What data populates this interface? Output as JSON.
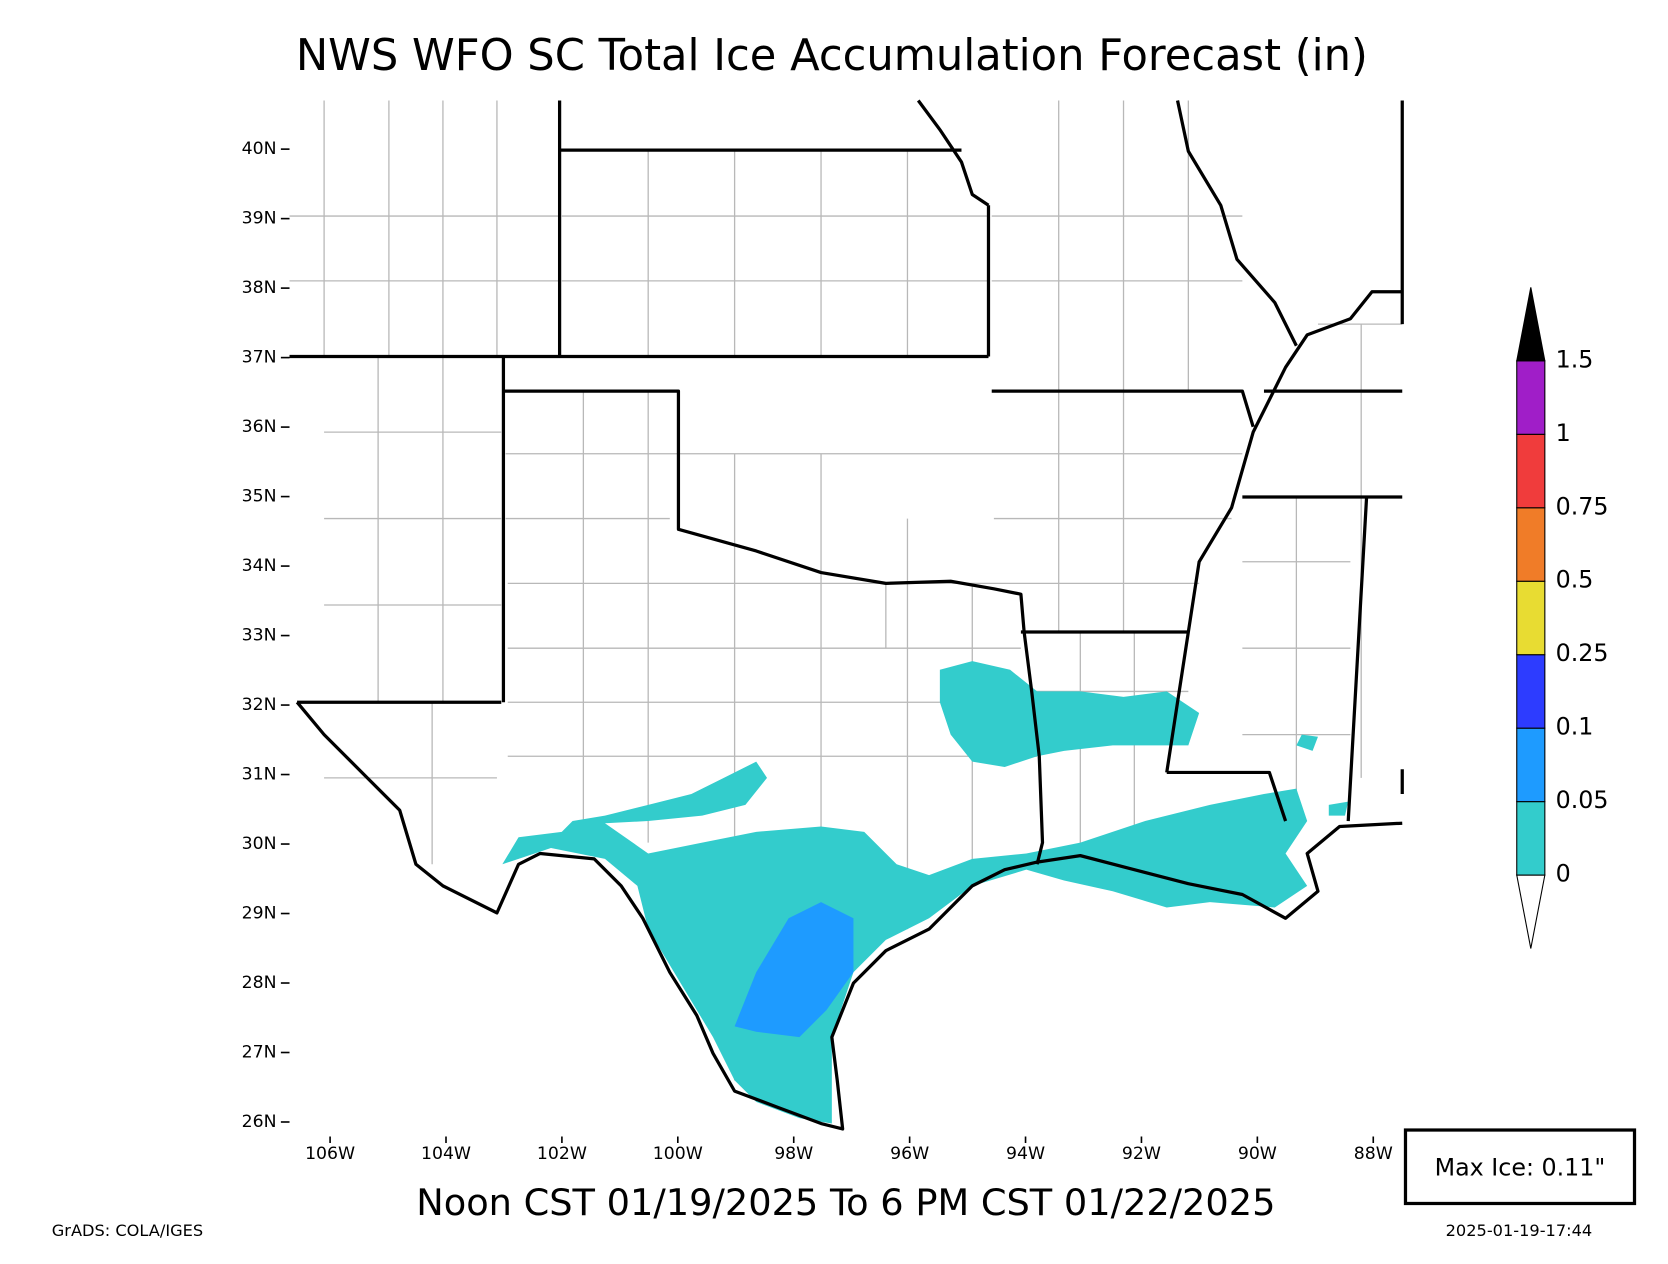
{
  "chart_data": {
    "type": "map",
    "title": "NWS WFO SC Total Ice Accumulation Forecast (in)",
    "subtitle": "Noon CST 01/19/2025 To 6 PM CST 01/22/2025",
    "xlim": [
      -106.7,
      -87.5
    ],
    "ylim": [
      25.9,
      40.7
    ],
    "xticks": [
      {
        "value": -106,
        "label": "106W"
      },
      {
        "value": -104,
        "label": "104W"
      },
      {
        "value": -102,
        "label": "102W"
      },
      {
        "value": -100,
        "label": "100W"
      },
      {
        "value": -98,
        "label": "98W"
      },
      {
        "value": -96,
        "label": "96W"
      },
      {
        "value": -94,
        "label": "94W"
      },
      {
        "value": -92,
        "label": "92W"
      },
      {
        "value": -90,
        "label": "90W"
      },
      {
        "value": -88,
        "label": "88W"
      }
    ],
    "yticks": [
      {
        "value": 26,
        "label": "26N"
      },
      {
        "value": 27,
        "label": "27N"
      },
      {
        "value": 28,
        "label": "28N"
      },
      {
        "value": 29,
        "label": "29N"
      },
      {
        "value": 30,
        "label": "30N"
      },
      {
        "value": 31,
        "label": "31N"
      },
      {
        "value": 32,
        "label": "32N"
      },
      {
        "value": 33,
        "label": "33N"
      },
      {
        "value": 34,
        "label": "34N"
      },
      {
        "value": 35,
        "label": "35N"
      },
      {
        "value": 36,
        "label": "36N"
      },
      {
        "value": 37,
        "label": "37N"
      },
      {
        "value": 38,
        "label": "38N"
      },
      {
        "value": 39,
        "label": "39N"
      },
      {
        "value": 40,
        "label": "40N"
      }
    ],
    "levels": [
      0,
      0.05,
      0.1,
      0.25,
      0.5,
      0.75,
      1,
      1.5
    ],
    "colors": [
      "#ffffff",
      "#33cccc",
      "#1e9bff",
      "#2d3cff",
      "#e8dc32",
      "#f07c28",
      "#f03c3c",
      "#a01ec8",
      "#000000"
    ],
    "max_label": "Max Ice: 0.11\"",
    "credit": "GrADS: COLA/IGES",
    "timestamp": "2025-01-19-17:44"
  }
}
